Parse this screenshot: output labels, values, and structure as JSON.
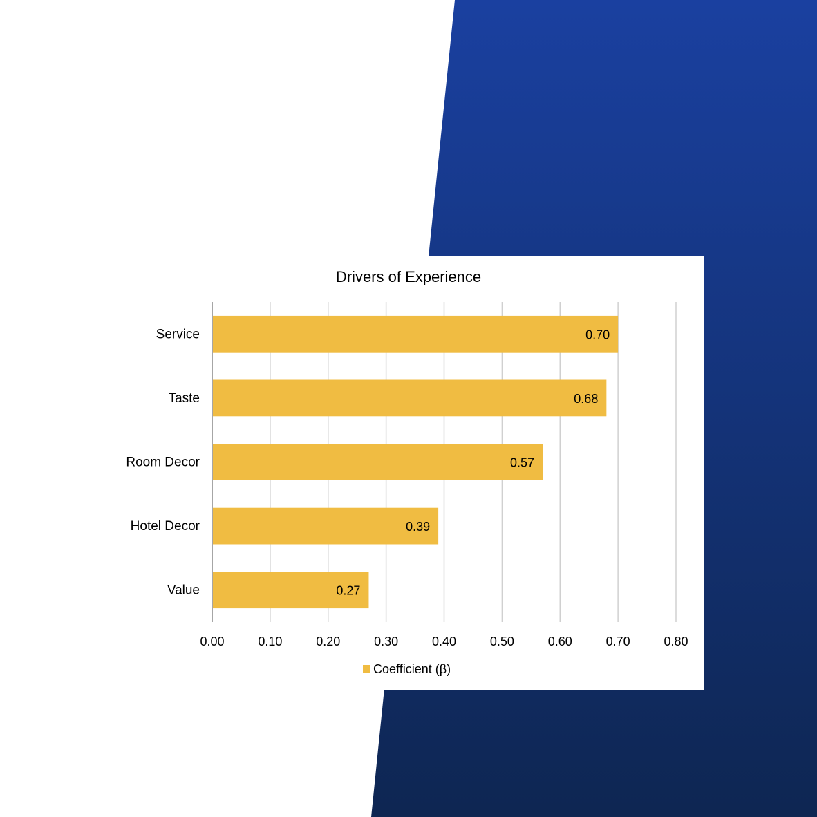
{
  "colors": {
    "bar": "#F0BC42",
    "background_top": "#1A40A0",
    "background_bottom": "#0E2652",
    "grid": "#D0D0D0",
    "axis": "#A6A6A6",
    "text": "#000000"
  },
  "chart_data": {
    "type": "bar",
    "orientation": "horizontal",
    "title": "Drivers of Experience",
    "categories": [
      "Service",
      "Taste",
      "Room Decor",
      "Hotel Decor",
      "Value"
    ],
    "series": [
      {
        "name": "Coefficient (β)",
        "values": [
          0.7,
          0.68,
          0.57,
          0.39,
          0.27
        ]
      }
    ],
    "data_labels": [
      "0.70",
      "0.68",
      "0.57",
      "0.39",
      "0.27"
    ],
    "x_ticks": [
      "0.00",
      "0.10",
      "0.20",
      "0.30",
      "0.40",
      "0.50",
      "0.60",
      "0.70",
      "0.80"
    ],
    "xlim": [
      0,
      0.8
    ],
    "xlabel": "",
    "ylabel": "",
    "grid": true,
    "legend": "bottom"
  }
}
